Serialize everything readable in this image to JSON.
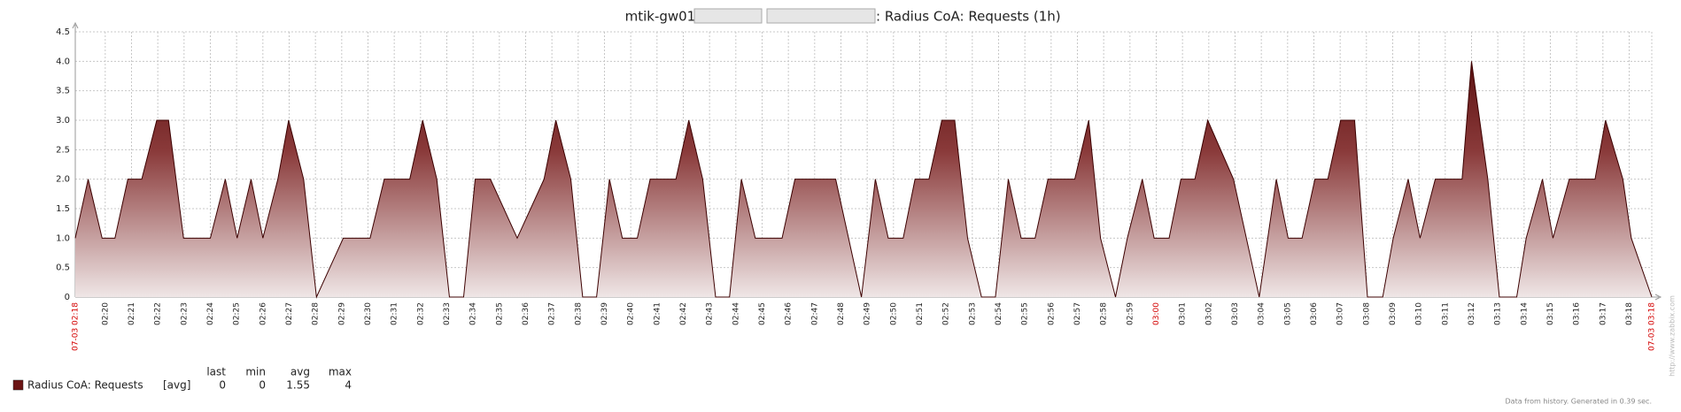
{
  "chart_data": {
    "type": "area",
    "title_prefix": "mtik-gw01.",
    "title_suffix": ": Radius CoA: Requests (1h)",
    "xlim": [
      18.86,
      78.86
    ],
    "ylim": [
      0,
      4.5
    ],
    "yticks": [
      0,
      0.5,
      {
        "value": 1,
        "label": "1.0"
      },
      1.5,
      {
        "value": 2,
        "label": "2.0"
      },
      2.5,
      {
        "value": 3,
        "label": "3.0"
      },
      3.5,
      {
        "value": 4,
        "label": "4.0"
      },
      4.5
    ],
    "xticks": [
      {
        "value": 18.86,
        "label": "07-03 02:18",
        "color": "#d40000"
      },
      {
        "value": 20,
        "label": "02:20"
      },
      {
        "value": 21,
        "label": "02:21"
      },
      {
        "value": 22,
        "label": "02:22"
      },
      {
        "value": 23,
        "label": "02:23"
      },
      {
        "value": 24,
        "label": "02:24"
      },
      {
        "value": 25,
        "label": "02:25"
      },
      {
        "value": 26,
        "label": "02:26"
      },
      {
        "value": 27,
        "label": "02:27"
      },
      {
        "value": 28,
        "label": "02:28"
      },
      {
        "value": 29,
        "label": "02:29"
      },
      {
        "value": 30,
        "label": "02:30"
      },
      {
        "value": 31,
        "label": "02:31"
      },
      {
        "value": 32,
        "label": "02:32"
      },
      {
        "value": 33,
        "label": "02:33"
      },
      {
        "value": 34,
        "label": "02:34"
      },
      {
        "value": 35,
        "label": "02:35"
      },
      {
        "value": 36,
        "label": "02:36"
      },
      {
        "value": 37,
        "label": "02:37"
      },
      {
        "value": 38,
        "label": "02:38"
      },
      {
        "value": 39,
        "label": "02:39"
      },
      {
        "value": 40,
        "label": "02:40"
      },
      {
        "value": 41,
        "label": "02:41"
      },
      {
        "value": 42,
        "label": "02:42"
      },
      {
        "value": 43,
        "label": "02:43"
      },
      {
        "value": 44,
        "label": "02:44"
      },
      {
        "value": 45,
        "label": "02:45"
      },
      {
        "value": 46,
        "label": "02:46"
      },
      {
        "value": 47,
        "label": "02:47"
      },
      {
        "value": 48,
        "label": "02:48"
      },
      {
        "value": 49,
        "label": "02:49"
      },
      {
        "value": 50,
        "label": "02:50"
      },
      {
        "value": 51,
        "label": "02:51"
      },
      {
        "value": 52,
        "label": "02:52"
      },
      {
        "value": 53,
        "label": "02:53"
      },
      {
        "value": 54,
        "label": "02:54"
      },
      {
        "value": 55,
        "label": "02:55"
      },
      {
        "value": 56,
        "label": "02:56"
      },
      {
        "value": 57,
        "label": "02:57"
      },
      {
        "value": 58,
        "label": "02:58"
      },
      {
        "value": 59,
        "label": "02:59"
      },
      {
        "value": 60,
        "label": "03:00",
        "color": "#d40000"
      },
      {
        "value": 61,
        "label": "03:01"
      },
      {
        "value": 62,
        "label": "03:02"
      },
      {
        "value": 63,
        "label": "03:03"
      },
      {
        "value": 64,
        "label": "03:04"
      },
      {
        "value": 65,
        "label": "03:05"
      },
      {
        "value": 66,
        "label": "03:06"
      },
      {
        "value": 67,
        "label": "03:07"
      },
      {
        "value": 68,
        "label": "03:08"
      },
      {
        "value": 69,
        "label": "03:09"
      },
      {
        "value": 70,
        "label": "03:10"
      },
      {
        "value": 71,
        "label": "03:11"
      },
      {
        "value": 72,
        "label": "03:12"
      },
      {
        "value": 73,
        "label": "03:13"
      },
      {
        "value": 74,
        "label": "03:14"
      },
      {
        "value": 75,
        "label": "03:15"
      },
      {
        "value": 76,
        "label": "03:16"
      },
      {
        "value": 77,
        "label": "03:17"
      },
      {
        "value": 78,
        "label": "03:18"
      },
      {
        "value": 78.86,
        "label": "07-03 03:18",
        "color": "#d40000"
      }
    ],
    "grid": true,
    "legend_columns": [
      "last",
      "min",
      "avg",
      "max"
    ],
    "series": [
      {
        "name": "Radius CoA: Requests",
        "func": "[avg]",
        "color": "#6b1414",
        "stats": [
          0,
          0,
          1.55,
          4
        ],
        "x": [
          18.86,
          19.35,
          19.88,
          20.37,
          20.86,
          21.39,
          21.96,
          22.41,
          22.98,
          24.0,
          24.57,
          25.02,
          25.55,
          26.0,
          26.57,
          26.98,
          27.55,
          28.04,
          29.06,
          30.08,
          30.62,
          31.59,
          32.08,
          32.62,
          33.1,
          33.64,
          34.08,
          34.66,
          35.68,
          36.7,
          37.15,
          37.72,
          38.17,
          38.7,
          39.19,
          39.68,
          40.25,
          40.74,
          41.72,
          42.21,
          42.74,
          43.23,
          43.76,
          44.21,
          44.74,
          45.76,
          46.25,
          47.8,
          48.78,
          49.31,
          49.8,
          50.37,
          50.82,
          51.35,
          51.84,
          52.33,
          52.82,
          53.35,
          53.88,
          54.37,
          54.86,
          55.39,
          55.88,
          56.9,
          57.43,
          57.88,
          58.45,
          58.9,
          59.47,
          59.92,
          60.49,
          60.94,
          61.47,
          61.96,
          62.94,
          63.92,
          64.57,
          65.02,
          65.55,
          66.04,
          66.53,
          67.02,
          67.55,
          68.04,
          68.62,
          69.02,
          69.59,
          70.04,
          70.62,
          71.64,
          72.0,
          72.62,
          73.06,
          73.72,
          74.08,
          74.7,
          75.1,
          75.72,
          76.7,
          77.1,
          77.76,
          78.08,
          78.86
        ],
        "values": [
          1,
          2,
          1,
          1,
          2,
          2,
          3,
          3,
          1,
          1,
          2,
          1,
          2,
          1,
          2,
          3,
          2,
          0,
          1,
          1,
          2,
          2,
          3,
          2,
          0,
          0,
          2,
          2,
          1,
          2,
          3,
          2,
          0,
          0,
          2,
          1,
          1,
          2,
          2,
          3,
          2,
          0,
          0,
          2,
          1,
          1,
          2,
          2,
          0,
          2,
          1,
          1,
          2,
          2,
          3,
          3,
          1,
          0,
          0,
          2,
          1,
          1,
          2,
          2,
          3,
          1,
          0,
          1,
          2,
          1,
          1,
          2,
          2,
          3,
          2,
          0,
          2,
          1,
          1,
          2,
          2,
          3,
          3,
          0,
          0,
          1,
          2,
          1,
          2,
          2,
          4,
          2,
          0,
          0,
          1,
          2,
          1,
          2,
          2,
          3,
          2,
          1,
          0
        ]
      }
    ],
    "footer": "Data from history. Generated in 0.39 sec.",
    "watermark": "http://www.zabbix.com"
  }
}
